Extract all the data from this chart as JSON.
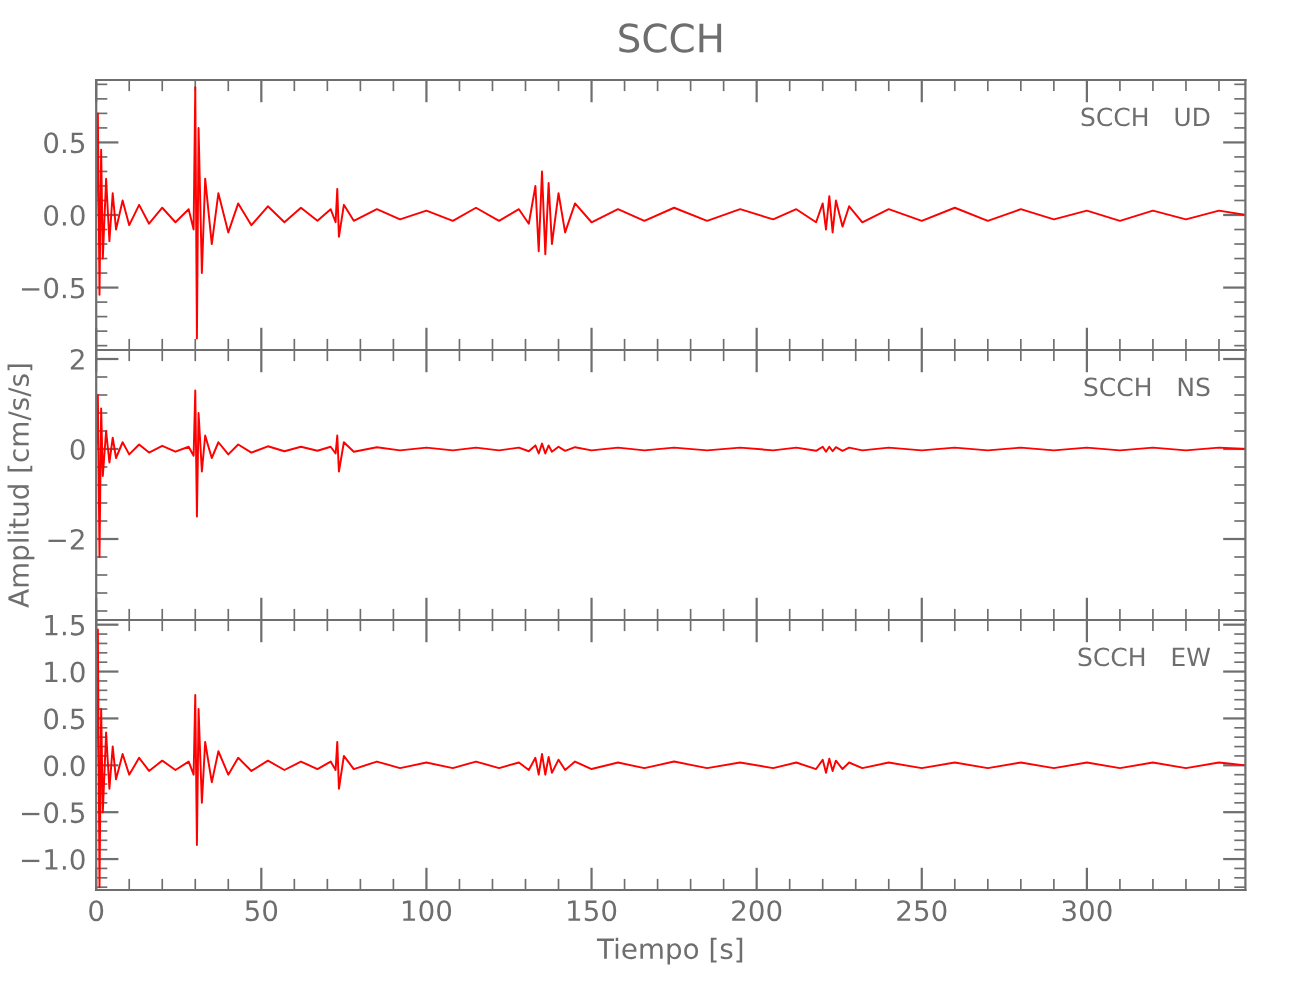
{
  "chart_data": [
    {
      "type": "line",
      "title": "SCCH",
      "tick_labels": "y",
      "xlim": [
        0,
        348
      ],
      "xticks": [
        0,
        50,
        100,
        150,
        200,
        250,
        300
      ],
      "ylim": [
        -0.93,
        0.93
      ],
      "yticks": [
        {
          "value": -0.5,
          "label": "−0.5"
        },
        {
          "value": 0,
          "label": "0.0"
        },
        {
          "value": 0.5,
          "label": "0.5"
        }
      ],
      "annotations": [
        "SCCH   UD"
      ],
      "x": [
        0,
        0.5,
        1,
        1.5,
        2,
        3,
        4,
        5,
        6,
        8,
        10,
        13,
        16,
        20,
        24,
        28,
        29.5,
        30,
        30.5,
        31,
        32,
        33,
        35,
        37,
        40,
        43,
        47,
        52,
        57,
        62,
        67,
        71,
        72.5,
        73,
        73.5,
        75,
        78,
        85,
        92,
        100,
        108,
        115,
        122,
        128,
        131,
        133,
        134,
        135,
        136,
        137,
        138,
        140,
        142,
        145,
        150,
        158,
        166,
        175,
        185,
        195,
        205,
        212,
        218,
        220,
        221,
        222,
        223,
        224,
        226,
        228,
        232,
        240,
        250,
        260,
        270,
        280,
        290,
        300,
        310,
        320,
        330,
        340,
        348
      ],
      "series": [
        {
          "color": "#ff0000",
          "values": [
            0.0,
            0.7,
            -0.55,
            0.45,
            -0.3,
            0.25,
            -0.18,
            0.15,
            -0.1,
            0.1,
            -0.07,
            0.07,
            -0.06,
            0.05,
            -0.05,
            0.04,
            -0.1,
            0.88,
            -0.85,
            0.6,
            -0.4,
            0.25,
            -0.2,
            0.15,
            -0.12,
            0.08,
            -0.07,
            0.06,
            -0.05,
            0.05,
            -0.04,
            0.04,
            -0.05,
            0.18,
            -0.15,
            0.07,
            -0.04,
            0.04,
            -0.03,
            0.03,
            -0.04,
            0.05,
            -0.04,
            0.04,
            -0.06,
            0.2,
            -0.25,
            0.3,
            -0.27,
            0.22,
            -0.2,
            0.15,
            -0.12,
            0.08,
            -0.05,
            0.04,
            -0.04,
            0.05,
            -0.04,
            0.04,
            -0.03,
            0.04,
            -0.05,
            0.08,
            -0.1,
            0.13,
            -0.12,
            0.1,
            -0.08,
            0.06,
            -0.05,
            0.04,
            -0.04,
            0.05,
            -0.04,
            0.04,
            -0.03,
            0.03,
            -0.04,
            0.03,
            -0.03,
            0.03,
            0.0
          ]
        }
      ]
    },
    {
      "type": "line",
      "ylabel": "Amplitud [cm/s/s]",
      "tick_labels": "y",
      "xlim": [
        0,
        348
      ],
      "xticks": [
        0,
        50,
        100,
        150,
        200,
        250,
        300
      ],
      "ylim": [
        -3.8,
        2.2
      ],
      "yticks": [
        {
          "value": -2,
          "label": "−2"
        },
        0,
        2
      ],
      "annotations": [
        "SCCH   NS"
      ],
      "x": [
        0,
        0.5,
        1,
        1.5,
        2,
        3,
        4,
        5,
        6,
        8,
        10,
        13,
        16,
        20,
        24,
        28,
        29.5,
        30,
        30.5,
        31,
        32,
        33,
        35,
        37,
        40,
        43,
        47,
        52,
        57,
        62,
        67,
        71,
        72.5,
        73,
        73.5,
        75,
        78,
        85,
        92,
        100,
        108,
        115,
        122,
        128,
        131,
        133,
        134,
        135,
        136,
        137,
        138,
        140,
        142,
        145,
        150,
        158,
        166,
        175,
        185,
        195,
        205,
        212,
        218,
        220,
        221,
        222,
        223,
        224,
        226,
        228,
        232,
        240,
        250,
        260,
        270,
        280,
        290,
        300,
        310,
        320,
        330,
        340,
        348
      ],
      "series": [
        {
          "color": "#ff0000",
          "values": [
            0.0,
            1.2,
            -2.4,
            0.9,
            -0.6,
            0.4,
            -0.3,
            0.25,
            -0.2,
            0.15,
            -0.12,
            0.1,
            -0.08,
            0.07,
            -0.06,
            0.05,
            -0.15,
            1.3,
            -1.5,
            0.8,
            -0.5,
            0.3,
            -0.2,
            0.15,
            -0.12,
            0.1,
            -0.08,
            0.06,
            -0.05,
            0.05,
            -0.04,
            0.05,
            -0.1,
            0.3,
            -0.5,
            0.15,
            -0.06,
            0.04,
            -0.03,
            0.03,
            -0.03,
            0.03,
            -0.03,
            0.03,
            -0.05,
            0.08,
            -0.1,
            0.12,
            -0.1,
            0.08,
            -0.06,
            0.05,
            -0.04,
            0.04,
            -0.03,
            0.03,
            -0.03,
            0.03,
            -0.03,
            0.03,
            -0.03,
            0.03,
            -0.04,
            0.05,
            -0.06,
            0.05,
            -0.05,
            0.04,
            -0.04,
            0.03,
            -0.03,
            0.03,
            -0.03,
            0.03,
            -0.03,
            0.03,
            -0.03,
            0.03,
            -0.03,
            0.03,
            -0.03,
            0.03,
            0.0
          ]
        }
      ]
    },
    {
      "type": "line",
      "xlabel": "Tiempo [s]",
      "xlim": [
        0,
        348
      ],
      "xticks": [
        0,
        50,
        100,
        150,
        200,
        250,
        300
      ],
      "ylim": [
        -1.33,
        1.55
      ],
      "yticks": [
        {
          "value": -1.0,
          "label": "−1.0"
        },
        {
          "value": -0.5,
          "label": "−0.5"
        },
        {
          "value": 0,
          "label": "0.0"
        },
        {
          "value": 0.5,
          "label": "0.5"
        },
        {
          "value": 1.0,
          "label": "1.0"
        },
        {
          "value": 1.5,
          "label": "1.5"
        }
      ],
      "annotations": [
        "SCCH   EW"
      ],
      "x": [
        0,
        0.5,
        1,
        1.5,
        2,
        3,
        4,
        5,
        6,
        8,
        10,
        13,
        16,
        20,
        24,
        28,
        29.5,
        30,
        30.5,
        31,
        32,
        33,
        35,
        37,
        40,
        43,
        47,
        52,
        57,
        62,
        67,
        71,
        72.5,
        73,
        73.5,
        75,
        78,
        85,
        92,
        100,
        108,
        115,
        122,
        128,
        131,
        133,
        134,
        135,
        136,
        137,
        138,
        140,
        142,
        145,
        150,
        158,
        166,
        175,
        185,
        195,
        205,
        212,
        218,
        220,
        221,
        222,
        223,
        224,
        226,
        228,
        232,
        240,
        250,
        260,
        270,
        280,
        290,
        300,
        310,
        320,
        330,
        340,
        348
      ],
      "series": [
        {
          "color": "#ff0000",
          "values": [
            0.0,
            1.45,
            -1.3,
            0.6,
            -0.5,
            0.35,
            -0.25,
            0.2,
            -0.15,
            0.12,
            -0.1,
            0.08,
            -0.06,
            0.05,
            -0.05,
            0.04,
            -0.1,
            0.75,
            -0.85,
            0.6,
            -0.4,
            0.25,
            -0.18,
            0.15,
            -0.1,
            0.08,
            -0.06,
            0.05,
            -0.05,
            0.04,
            -0.04,
            0.04,
            -0.05,
            0.25,
            -0.25,
            0.1,
            -0.04,
            0.04,
            -0.03,
            0.03,
            -0.03,
            0.04,
            -0.03,
            0.03,
            -0.05,
            0.08,
            -0.1,
            0.12,
            -0.1,
            0.09,
            -0.08,
            0.06,
            -0.05,
            0.04,
            -0.04,
            0.03,
            -0.03,
            0.04,
            -0.03,
            0.03,
            -0.03,
            0.03,
            -0.04,
            0.06,
            -0.08,
            0.07,
            -0.06,
            0.05,
            -0.04,
            0.03,
            -0.03,
            0.03,
            -0.03,
            0.03,
            -0.03,
            0.03,
            -0.03,
            0.03,
            -0.03,
            0.03,
            -0.03,
            0.03,
            0.0
          ]
        }
      ]
    }
  ]
}
